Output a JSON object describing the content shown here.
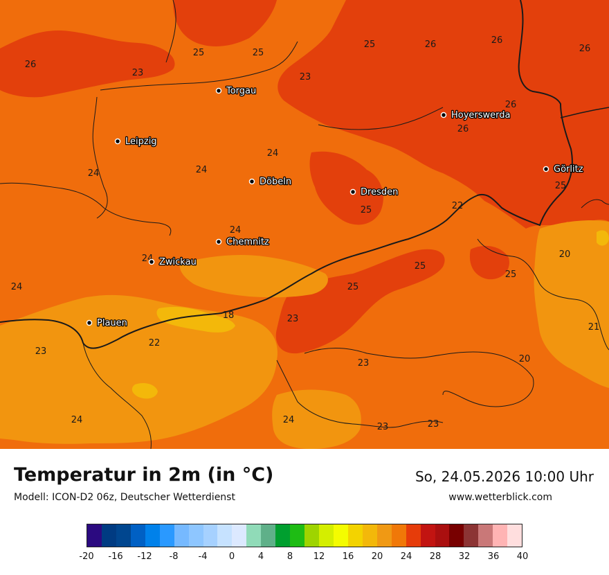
{
  "map": {
    "cities": [
      {
        "name": "Torgau"
      },
      {
        "name": "Leipzig"
      },
      {
        "name": "Hoyerswerda"
      },
      {
        "name": "Döbeln"
      },
      {
        "name": "Dresden"
      },
      {
        "name": "Görlitz"
      },
      {
        "name": "Chemnitz"
      },
      {
        "name": "Zwickau"
      },
      {
        "name": "Plauen"
      }
    ],
    "values": [
      "26",
      "25",
      "25",
      "25",
      "26",
      "26",
      "26",
      "23",
      "23",
      "26",
      "26",
      "24",
      "24",
      "24",
      "25",
      "22",
      "24",
      "25",
      "20",
      "24",
      "24",
      "25",
      "25",
      "18",
      "25",
      "21",
      "23",
      "23",
      "22",
      "23",
      "20",
      "24",
      "24",
      "23",
      "23"
    ]
  },
  "footer": {
    "title": "Temperatur in 2m (in °C)",
    "model": "Modell: ICON-D2 06z, Deutscher Wetterdienst",
    "datetime": "So, 24.05.2026 10:00 Uhr",
    "website": "www.wetterblick.com"
  },
  "legend": {
    "colors": [
      "#2b0a80",
      "#003b82",
      "#00468f",
      "#0060c4",
      "#0081ea",
      "#2a99ff",
      "#76b9ff",
      "#8ec6ff",
      "#a6d1ff",
      "#c6e2ff",
      "#dce9ff",
      "#90dbb8",
      "#5fb089",
      "#009f2f",
      "#1ebc14",
      "#9ed400",
      "#d4ee00",
      "#f4fc00",
      "#f3d300",
      "#f3b80a",
      "#f09914",
      "#f07808",
      "#e63c0a",
      "#c21411",
      "#aa0f0f",
      "#780000",
      "#8c3434",
      "#c97878",
      "#ffb4b4",
      "#ffdede"
    ],
    "ticks": [
      "-20",
      "-16",
      "-12",
      "-8",
      "-4",
      "0",
      "4",
      "8",
      "12",
      "16",
      "20",
      "24",
      "28",
      "32",
      "36",
      "40"
    ]
  }
}
